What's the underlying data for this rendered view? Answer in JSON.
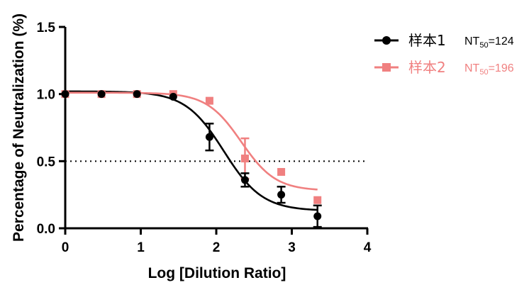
{
  "chart_data": {
    "type": "scatter",
    "xlabel": "Log [Dilution Ratio]",
    "ylabel": "Percentage of Neutralization (%)",
    "xlim": [
      0,
      4
    ],
    "ylim": [
      0,
      1.5
    ],
    "xticks": [
      "0",
      "1",
      "2",
      "3",
      "4"
    ],
    "yticks": [
      "0.0",
      "0.5",
      "1.0",
      "1.5"
    ],
    "threshold": 0.5,
    "grid": false,
    "legend_position": "top-right",
    "series": [
      {
        "name": "样本1",
        "nt_label": "NT",
        "nt_sub": "50",
        "nt_value": "=124",
        "color": "#000000",
        "marker": "circle",
        "x": [
          0,
          0.48,
          0.95,
          1.43,
          1.91,
          2.38,
          2.86,
          3.34
        ],
        "y": [
          1.0,
          1.0,
          1.0,
          0.98,
          0.68,
          0.36,
          0.25,
          0.09
        ],
        "err": [
          0,
          0,
          0,
          0,
          0.1,
          0.05,
          0.06,
          0.08
        ],
        "fit": {
          "top": 1.02,
          "bottom": 0.13,
          "log_ec50": 2.1,
          "hill": 1.7
        }
      },
      {
        "name": "样本2",
        "nt_label": "NT",
        "nt_sub": "50",
        "nt_value": "=196",
        "color": "#f08080",
        "marker": "square",
        "x": [
          0,
          0.48,
          0.95,
          1.43,
          1.91,
          2.38,
          2.86,
          3.34
        ],
        "y": [
          1.0,
          1.0,
          1.0,
          1.0,
          0.95,
          0.52,
          0.42,
          0.21
        ],
        "err": [
          0,
          0,
          0,
          0,
          0,
          0.15,
          0,
          0
        ],
        "fit": {
          "top": 1.01,
          "bottom": 0.28,
          "log_ec50": 2.33,
          "hill": 1.9
        }
      }
    ]
  }
}
